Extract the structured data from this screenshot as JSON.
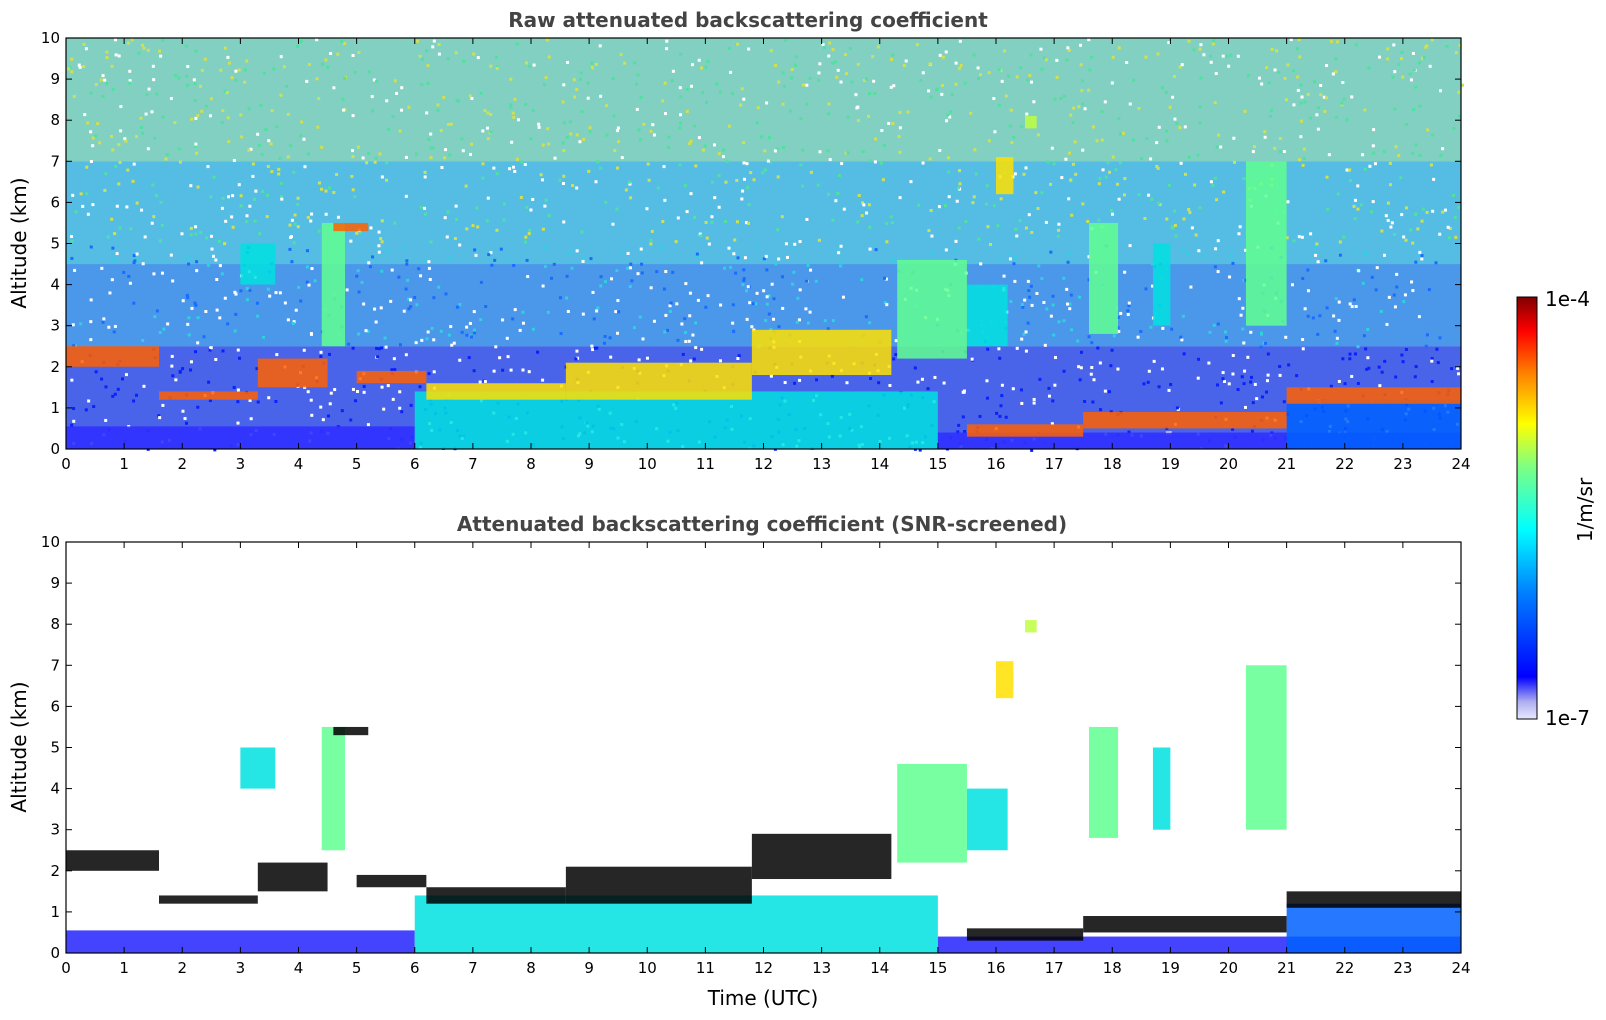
{
  "chart_data": [
    {
      "type": "heatmap",
      "title": "Raw attenuated backscattering coefficient",
      "xlabel": "",
      "ylabel": "Altitude (km)",
      "xlim": [
        0,
        24
      ],
      "ylim": [
        0,
        10
      ],
      "x_ticks": [
        "0",
        "1",
        "2",
        "3",
        "4",
        "5",
        "6",
        "7",
        "8",
        "9",
        "10",
        "11",
        "12",
        "13",
        "14",
        "15",
        "16",
        "17",
        "18",
        "19",
        "20",
        "21",
        "22",
        "23",
        "24"
      ],
      "y_ticks": [
        "0",
        "1",
        "2",
        "3",
        "4",
        "5",
        "6",
        "7",
        "8",
        "9",
        "10"
      ],
      "noise": "high",
      "layers": [
        {
          "name": "boundary layer aerosol",
          "segments": [
            [
              0,
              6,
              0,
              0.55,
              2
            ],
            [
              6,
              15,
              0,
              1.4,
              5
            ],
            [
              15,
              24,
              0,
              0.4,
              2
            ],
            [
              21,
              24,
              0,
              1.2,
              3
            ]
          ]
        },
        {
          "name": "residual layer top",
          "segments": [
            [
              0,
              1.6,
              2.0,
              2.5,
              9
            ],
            [
              1.6,
              3.3,
              1.2,
              1.4,
              9
            ],
            [
              3.3,
              4.5,
              1.5,
              2.2,
              9
            ],
            [
              5,
              6.2,
              1.6,
              1.9,
              9
            ],
            [
              6.2,
              8.6,
              1.2,
              1.6,
              8
            ],
            [
              8.6,
              11.8,
              1.2,
              2.1,
              8
            ],
            [
              11.8,
              14.2,
              1.8,
              2.9,
              8
            ],
            [
              15.5,
              17.5,
              0.3,
              0.6,
              9
            ],
            [
              17.5,
              21,
              0.5,
              0.9,
              9
            ],
            [
              21,
              24,
              1.1,
              1.5,
              9
            ]
          ]
        },
        {
          "name": "cloud/aerosol plumes",
          "segments": [
            [
              3.0,
              3.6,
              4.0,
              5.0,
              5
            ],
            [
              4.4,
              4.8,
              2.5,
              5.5,
              6
            ],
            [
              4.6,
              5.2,
              5.3,
              5.5,
              9
            ],
            [
              14.3,
              15.5,
              2.2,
              4.6,
              6
            ],
            [
              15.5,
              16.2,
              2.5,
              4.0,
              5
            ],
            [
              16.0,
              16.3,
              6.2,
              7.1,
              8
            ],
            [
              16.5,
              16.7,
              7.8,
              8.1,
              7
            ],
            [
              17.6,
              18.1,
              2.8,
              5.5,
              6
            ],
            [
              18.7,
              19.0,
              3.0,
              5.0,
              5
            ],
            [
              20.3,
              21.0,
              3.0,
              7.0,
              6
            ]
          ]
        }
      ]
    },
    {
      "type": "heatmap",
      "title": "Attenuated backscattering coefficient (SNR-screened)",
      "xlabel": "Time (UTC)",
      "ylabel": "Altitude (km)",
      "xlim": [
        0,
        24
      ],
      "ylim": [
        0,
        10
      ],
      "x_ticks": [
        "0",
        "1",
        "2",
        "3",
        "4",
        "5",
        "6",
        "7",
        "8",
        "9",
        "10",
        "11",
        "12",
        "13",
        "14",
        "15",
        "16",
        "17",
        "18",
        "19",
        "20",
        "21",
        "22",
        "23",
        "24"
      ],
      "y_ticks": [
        "0",
        "1",
        "2",
        "3",
        "4",
        "5",
        "6",
        "7",
        "8",
        "9",
        "10"
      ],
      "noise": "screened",
      "layers": [
        {
          "name": "boundary layer aerosol",
          "segments": [
            [
              0,
              6,
              0,
              0.55,
              2
            ],
            [
              6,
              15,
              0,
              1.4,
              5
            ],
            [
              15,
              24,
              0,
              0.4,
              2
            ],
            [
              21,
              24,
              0,
              1.2,
              3
            ]
          ]
        },
        {
          "name": "residual layer top",
          "segments": [
            [
              0,
              1.6,
              2.0,
              2.5,
              10
            ],
            [
              1.6,
              3.3,
              1.2,
              1.4,
              10
            ],
            [
              3.3,
              4.5,
              1.5,
              2.2,
              10
            ],
            [
              5,
              6.2,
              1.6,
              1.9,
              10
            ],
            [
              6.2,
              8.6,
              1.2,
              1.6,
              10
            ],
            [
              8.6,
              11.8,
              1.2,
              2.1,
              10
            ],
            [
              11.8,
              14.2,
              1.8,
              2.9,
              10
            ],
            [
              15.5,
              17.5,
              0.3,
              0.6,
              10
            ],
            [
              17.5,
              21,
              0.5,
              0.9,
              10
            ],
            [
              21,
              24,
              1.1,
              1.5,
              10
            ]
          ]
        },
        {
          "name": "cloud/aerosol plumes",
          "segments": [
            [
              3.0,
              3.6,
              4.0,
              5.0,
              5
            ],
            [
              4.4,
              4.8,
              2.5,
              5.5,
              6
            ],
            [
              4.6,
              5.2,
              5.3,
              5.5,
              10
            ],
            [
              14.3,
              15.5,
              2.2,
              4.6,
              6
            ],
            [
              15.5,
              16.2,
              2.5,
              4.0,
              5
            ],
            [
              16.0,
              16.3,
              6.2,
              7.1,
              8
            ],
            [
              16.5,
              16.7,
              7.8,
              8.1,
              7
            ],
            [
              17.6,
              18.1,
              2.8,
              5.5,
              6
            ],
            [
              18.7,
              19.0,
              3.0,
              5.0,
              5
            ],
            [
              20.3,
              21.0,
              3.0,
              7.0,
              6
            ]
          ]
        }
      ]
    }
  ],
  "colorbar": {
    "max_label": "1e-4",
    "min_label": "1e-7",
    "units": "1/m/sr",
    "range": [
      1e-07,
      0.0001
    ],
    "scale": "log",
    "colormap": [
      "#ffffff",
      "#ccccff",
      "#0000ff",
      "#00a0ff",
      "#00ffff",
      "#80ff80",
      "#ffff00",
      "#ff8000",
      "#ff0000",
      "#800000",
      "#000000"
    ]
  }
}
